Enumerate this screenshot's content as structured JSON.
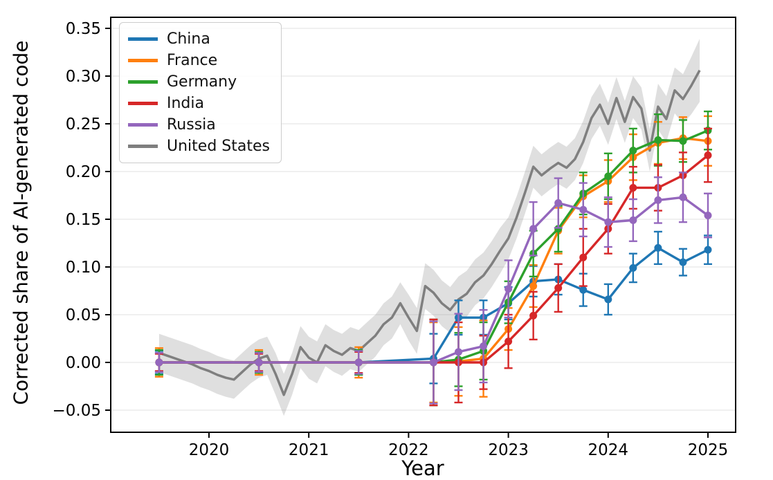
{
  "chart_data": {
    "type": "line",
    "title": "",
    "xlabel": "Year",
    "ylabel": "Corrected share of AI-generated code",
    "x_ticks": [
      2020,
      2021,
      2022,
      2023,
      2024,
      2025
    ],
    "y_ticks": [
      -0.05,
      0.0,
      0.05,
      0.1,
      0.15,
      0.2,
      0.25,
      0.3,
      0.35
    ],
    "xlim": [
      2019.02,
      2025.28
    ],
    "ylim": [
      -0.073,
      0.362
    ],
    "grid": "horizontal",
    "legend_position": "upper-left",
    "series": [
      {
        "name": "China",
        "color": "#1f77b4",
        "marker": "circle",
        "x": [
          2019.5,
          2020.5,
          2021.5,
          2022.25,
          2022.5,
          2022.75,
          2023.0,
          2023.25,
          2023.5,
          2023.75,
          2024.0,
          2024.25,
          2024.5,
          2024.75,
          2025.0
        ],
        "y": [
          0.0,
          0.0,
          0.0,
          0.004,
          0.047,
          0.047,
          0.062,
          0.085,
          0.087,
          0.076,
          0.066,
          0.099,
          0.12,
          0.105,
          0.118
        ],
        "yerr": [
          0.012,
          0.01,
          0.013,
          0.026,
          0.018,
          0.018,
          0.017,
          0.016,
          0.016,
          0.017,
          0.016,
          0.015,
          0.017,
          0.014,
          0.015
        ]
      },
      {
        "name": "France",
        "color": "#ff7f0e",
        "marker": "circle",
        "x": [
          2019.5,
          2020.5,
          2021.5,
          2022.25,
          2022.5,
          2022.75,
          2023.0,
          2023.25,
          2023.5,
          2023.75,
          2024.0,
          2024.25,
          2024.5,
          2024.75,
          2025.0
        ],
        "y": [
          0.0,
          0.0,
          0.0,
          0.0,
          0.001,
          0.004,
          0.035,
          0.08,
          0.138,
          0.174,
          0.19,
          0.215,
          0.23,
          0.235,
          0.232
        ],
        "yerr": [
          0.015,
          0.013,
          0.016,
          0.042,
          0.036,
          0.04,
          0.022,
          0.022,
          0.024,
          0.022,
          0.022,
          0.024,
          0.022,
          0.022,
          0.026
        ]
      },
      {
        "name": "Germany",
        "color": "#2ca02c",
        "marker": "circle",
        "x": [
          2019.5,
          2020.5,
          2021.5,
          2022.25,
          2022.5,
          2022.75,
          2023.0,
          2023.25,
          2023.5,
          2023.75,
          2024.0,
          2024.25,
          2024.5,
          2024.75,
          2025.0
        ],
        "y": [
          0.0,
          0.0,
          0.0,
          0.0,
          0.003,
          0.012,
          0.063,
          0.114,
          0.14,
          0.177,
          0.195,
          0.222,
          0.233,
          0.232,
          0.243
        ],
        "yerr": [
          0.013,
          0.011,
          0.013,
          0.045,
          0.028,
          0.03,
          0.022,
          0.024,
          0.024,
          0.022,
          0.024,
          0.023,
          0.027,
          0.022,
          0.02
        ]
      },
      {
        "name": "India",
        "color": "#d62728",
        "marker": "circle",
        "x": [
          2019.5,
          2020.5,
          2021.5,
          2022.25,
          2022.5,
          2022.75,
          2023.0,
          2023.25,
          2023.5,
          2023.75,
          2024.0,
          2024.25,
          2024.5,
          2024.75,
          2025.0
        ],
        "y": [
          0.0,
          0.0,
          0.0,
          0.0,
          0.0,
          0.0,
          0.022,
          0.049,
          0.078,
          0.11,
          0.14,
          0.183,
          0.183,
          0.196,
          0.217
        ],
        "yerr": [
          0.009,
          0.009,
          0.011,
          0.045,
          0.042,
          0.028,
          0.028,
          0.025,
          0.025,
          0.03,
          0.026,
          0.022,
          0.024,
          0.024,
          0.028
        ]
      },
      {
        "name": "Russia",
        "color": "#9467bd",
        "marker": "circle",
        "x": [
          2019.5,
          2020.5,
          2021.5,
          2022.25,
          2022.5,
          2022.75,
          2023.0,
          2023.25,
          2023.5,
          2023.75,
          2024.0,
          2024.25,
          2024.5,
          2024.75,
          2025.0
        ],
        "y": [
          0.0,
          0.0,
          0.0,
          0.0,
          0.011,
          0.017,
          0.077,
          0.14,
          0.167,
          0.16,
          0.147,
          0.149,
          0.17,
          0.173,
          0.154
        ],
        "yerr": [
          0.01,
          0.01,
          0.012,
          0.043,
          0.04,
          0.038,
          0.03,
          0.028,
          0.026,
          0.028,
          0.026,
          0.022,
          0.024,
          0.026,
          0.023
        ]
      },
      {
        "name": "United States",
        "color": "#7f7f7f",
        "marker": "none",
        "band_color": "#7f7f7f",
        "band_opacity": 0.25,
        "x": [
          2019.5,
          2019.583,
          2019.667,
          2019.75,
          2019.833,
          2019.917,
          2020.0,
          2020.083,
          2020.167,
          2020.25,
          2020.333,
          2020.417,
          2020.5,
          2020.583,
          2020.667,
          2020.75,
          2020.833,
          2020.917,
          2021.0,
          2021.083,
          2021.167,
          2021.25,
          2021.333,
          2021.417,
          2021.5,
          2021.583,
          2021.667,
          2021.75,
          2021.833,
          2021.917,
          2022.0,
          2022.083,
          2022.167,
          2022.25,
          2022.333,
          2022.417,
          2022.5,
          2022.583,
          2022.667,
          2022.75,
          2022.833,
          2022.917,
          2023.0,
          2023.083,
          2023.167,
          2023.25,
          2023.333,
          2023.417,
          2023.5,
          2023.583,
          2023.667,
          2023.75,
          2023.833,
          2023.917,
          2024.0,
          2024.083,
          2024.167,
          2024.25,
          2024.333,
          2024.417,
          2024.5,
          2024.583,
          2024.667,
          2024.75,
          2024.833,
          2024.917
        ],
        "y": [
          0.01,
          0.007,
          0.004,
          0.001,
          -0.002,
          -0.006,
          -0.009,
          -0.013,
          -0.016,
          -0.018,
          -0.01,
          -0.002,
          0.004,
          0.007,
          -0.012,
          -0.034,
          -0.012,
          0.016,
          0.005,
          0.0,
          0.018,
          0.012,
          0.008,
          0.015,
          0.012,
          0.02,
          0.028,
          0.04,
          0.047,
          0.062,
          0.047,
          0.033,
          0.08,
          0.073,
          0.062,
          0.055,
          0.066,
          0.072,
          0.084,
          0.091,
          0.103,
          0.117,
          0.13,
          0.152,
          0.178,
          0.205,
          0.196,
          0.203,
          0.209,
          0.204,
          0.213,
          0.231,
          0.256,
          0.27,
          0.25,
          0.277,
          0.252,
          0.278,
          0.266,
          0.222,
          0.268,
          0.255,
          0.285,
          0.276,
          0.29,
          0.306
        ],
        "band_halfwidth": [
          0.02,
          0.02,
          0.02,
          0.02,
          0.02,
          0.02,
          0.02,
          0.02,
          0.02,
          0.02,
          0.02,
          0.02,
          0.02,
          0.02,
          0.022,
          0.022,
          0.022,
          0.022,
          0.022,
          0.022,
          0.022,
          0.022,
          0.022,
          0.022,
          0.022,
          0.022,
          0.022,
          0.022,
          0.022,
          0.022,
          0.024,
          0.024,
          0.024,
          0.024,
          0.024,
          0.024,
          0.024,
          0.024,
          0.024,
          0.024,
          0.024,
          0.024,
          0.022,
          0.022,
          0.022,
          0.022,
          0.022,
          0.022,
          0.022,
          0.022,
          0.022,
          0.022,
          0.022,
          0.022,
          0.022,
          0.022,
          0.022,
          0.022,
          0.022,
          0.022,
          0.024,
          0.024,
          0.024,
          0.026,
          0.03,
          0.033
        ]
      }
    ]
  }
}
